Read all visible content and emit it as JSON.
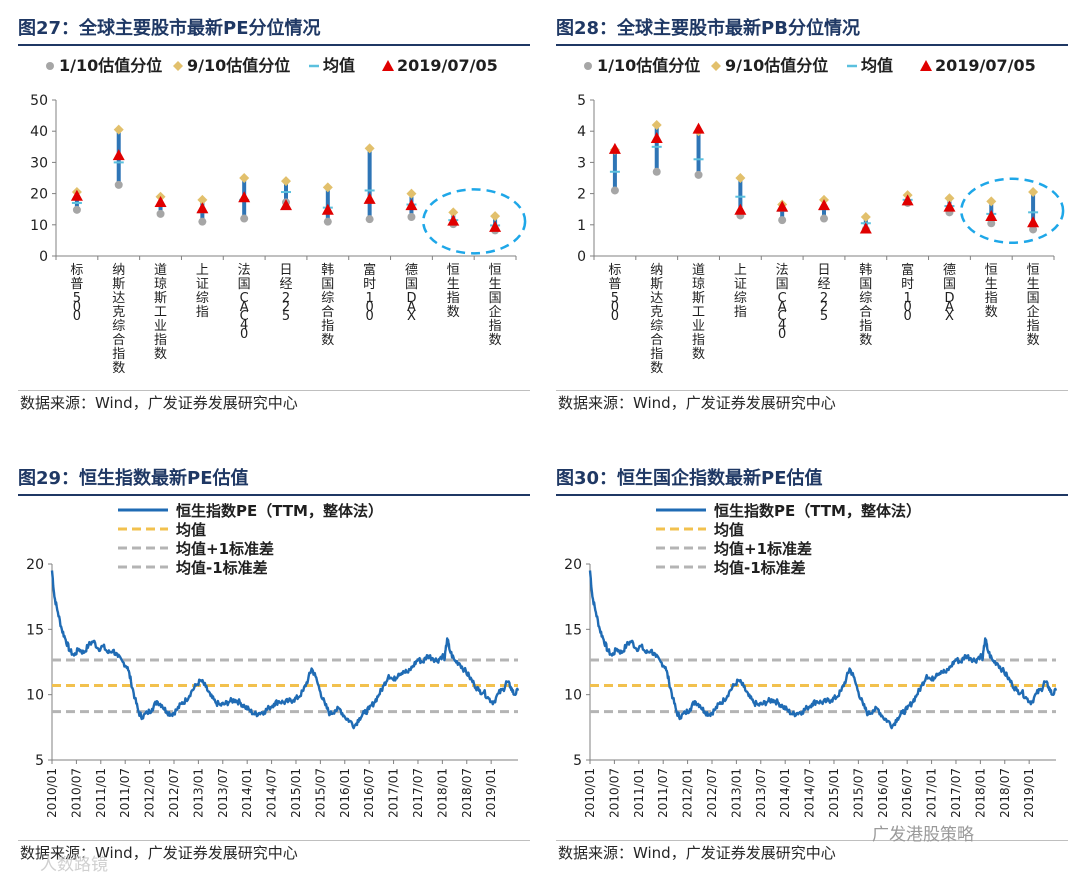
{
  "colors": {
    "title": "#1f3864",
    "range_line": "#2e75b6",
    "low_marker": "#a6a6a6",
    "high_marker": "#e2c06c",
    "mean_marker": "#5bc0de",
    "current_marker": "#e00000",
    "highlight_circle": "#1ea7e8",
    "pe_line": "#1f6bb4",
    "mean_line": "#f2c14e",
    "std_line": "#b4b4b4"
  },
  "panels": {
    "fig27": {
      "title": "图27：全球主要股市最新PE分位情况",
      "source": "数据来源：Wind，广发证券发展研究中心"
    },
    "fig28": {
      "title": "图28：全球主要股市最新PB分位情况",
      "source": "数据来源：Wind，广发证券发展研究中心"
    },
    "fig29": {
      "title": "图29：恒生指数最新PE估值",
      "source": "数据来源：Wind，广发证券发展研究中心"
    },
    "fig30": {
      "title": "图30：恒生国企指数最新PE估值",
      "source": "数据来源：Wind，广发证券发展研究中心"
    }
  },
  "watermarks": {
    "right": "广发港股策略",
    "left": "人数路镜"
  },
  "chart_data": [
    {
      "id": "fig27",
      "type": "scatter",
      "title": "全球主要股市最新PE分位情况",
      "legend": [
        "1/10估值分位",
        "9/10估值分位",
        "均值",
        "2019/07/05"
      ],
      "legend_position": "top",
      "categories": [
        "标普500",
        "纳斯达克综合指数",
        "道琼斯工业指数",
        "上证综指",
        "法国CAC40",
        "日经225",
        "韩国综合指数",
        "富时100",
        "德国DAX",
        "恒生指数",
        "恒生国企指数"
      ],
      "series": [
        {
          "name": "1/10估值分位",
          "values": [
            14.8,
            22.8,
            13.5,
            11.0,
            12.0,
            17.2,
            11.0,
            11.8,
            12.5,
            10.2,
            8.2
          ]
        },
        {
          "name": "9/10估值分位",
          "values": [
            20.5,
            40.5,
            19.0,
            18.0,
            25.0,
            24.0,
            22.0,
            34.5,
            20.0,
            14.0,
            12.8
          ]
        },
        {
          "name": "均值",
          "values": [
            17.0,
            30.0,
            16.0,
            14.0,
            18.0,
            20.5,
            15.5,
            21.0,
            16.5,
            11.5,
            9.8
          ]
        },
        {
          "name": "2019/07/05",
          "values": [
            19.0,
            32.0,
            17.0,
            15.0,
            18.5,
            16.0,
            14.5,
            18.0,
            16.0,
            11.0,
            9.0
          ]
        }
      ],
      "ylim": [
        0,
        50
      ],
      "yticks": [
        "50",
        "40",
        "30",
        "20",
        "10",
        "0"
      ],
      "highlight": [
        "恒生指数",
        "恒生国企指数"
      ]
    },
    {
      "id": "fig28",
      "type": "scatter",
      "title": "全球主要股市最新PB分位情况",
      "legend": [
        "1/10估值分位",
        "9/10估值分位",
        "均值",
        "2019/07/05"
      ],
      "legend_position": "top",
      "categories": [
        "标普500",
        "纳斯达克综合指数",
        "道琼斯工业指数",
        "上证综指",
        "法国CAC40",
        "日经225",
        "韩国综合指数",
        "富时100",
        "德国DAX",
        "恒生指数",
        "恒生国企指数"
      ],
      "series": [
        {
          "name": "1/10估值分位",
          "values": [
            2.1,
            2.7,
            2.6,
            1.3,
            1.15,
            1.2,
            0.85,
            1.7,
            1.4,
            1.05,
            0.85
          ]
        },
        {
          "name": "9/10估值分位",
          "values": [
            3.4,
            4.2,
            4.0,
            2.5,
            1.65,
            1.8,
            1.25,
            1.95,
            1.85,
            1.75,
            2.05
          ]
        },
        {
          "name": "均值",
          "values": [
            2.7,
            3.5,
            3.1,
            1.9,
            1.45,
            1.5,
            1.05,
            1.8,
            1.6,
            1.35,
            1.4
          ]
        },
        {
          "name": "2019/07/05",
          "values": [
            3.4,
            3.75,
            4.05,
            1.45,
            1.55,
            1.6,
            0.85,
            1.75,
            1.55,
            1.25,
            1.05
          ]
        }
      ],
      "ylim": [
        0,
        5
      ],
      "yticks": [
        "5",
        "4",
        "3",
        "2",
        "1",
        "0"
      ],
      "highlight": [
        "恒生指数",
        "恒生国企指数"
      ]
    },
    {
      "id": "fig29",
      "type": "line",
      "title": "恒生指数最新PE估值",
      "legend": [
        "恒生指数PE（TTM，整体法）",
        "均值",
        "均值+1标准差",
        "均值-1标准差"
      ],
      "legend_position": "top-left",
      "ylim": [
        5,
        20
      ],
      "yticks": [
        "20",
        "15",
        "10",
        "5"
      ],
      "xticks": [
        "2010/01",
        "2010/07",
        "2011/01",
        "2011/07",
        "2012/01",
        "2012/07",
        "2013/01",
        "2013/07",
        "2014/01",
        "2014/07",
        "2015/01",
        "2015/07",
        "2016/01",
        "2016/07",
        "2017/01",
        "2017/07",
        "2018/01",
        "2018/07",
        "2019/01"
      ],
      "x_start": 2010.0,
      "x_end": 2019.55,
      "mean": 10.7,
      "mean_plus_std": 12.65,
      "mean_minus_std": 8.7,
      "series": [
        {
          "name": "恒生指数PE（TTM，整体法）",
          "x": [
            2010.0,
            2010.05,
            2010.12,
            2010.2,
            2010.28,
            2010.36,
            2010.45,
            2010.55,
            2010.65,
            2010.75,
            2010.85,
            2010.95,
            2011.05,
            2011.15,
            2011.25,
            2011.35,
            2011.45,
            2011.55,
            2011.62,
            2011.7,
            2011.78,
            2011.85,
            2011.95,
            2012.05,
            2012.15,
            2012.25,
            2012.35,
            2012.45,
            2012.55,
            2012.65,
            2012.75,
            2012.85,
            2012.95,
            2013.05,
            2013.15,
            2013.25,
            2013.35,
            2013.45,
            2013.55,
            2013.65,
            2013.75,
            2013.85,
            2013.95,
            2014.05,
            2014.15,
            2014.25,
            2014.35,
            2014.45,
            2014.55,
            2014.65,
            2014.75,
            2014.85,
            2014.95,
            2015.05,
            2015.15,
            2015.25,
            2015.32,
            2015.4,
            2015.5,
            2015.6,
            2015.7,
            2015.8,
            2015.9,
            2016.0,
            2016.1,
            2016.2,
            2016.3,
            2016.4,
            2016.5,
            2016.6,
            2016.7,
            2016.8,
            2016.9,
            2017.0,
            2017.1,
            2017.2,
            2017.3,
            2017.4,
            2017.5,
            2017.6,
            2017.7,
            2017.8,
            2017.9,
            2018.0,
            2018.05,
            2018.1,
            2018.15,
            2018.25,
            2018.35,
            2018.45,
            2018.55,
            2018.65,
            2018.75,
            2018.85,
            2018.95,
            2019.05,
            2019.15,
            2019.25,
            2019.32,
            2019.4,
            2019.47,
            2019.55
          ],
          "y": [
            19.5,
            17.5,
            16.3,
            15.0,
            14.2,
            13.4,
            13.0,
            13.5,
            13.2,
            13.8,
            14.1,
            13.5,
            13.7,
            13.2,
            13.4,
            12.9,
            12.5,
            12.1,
            11.0,
            9.7,
            8.6,
            8.3,
            8.6,
            8.9,
            9.5,
            9.2,
            8.7,
            8.5,
            8.8,
            9.3,
            9.6,
            10.2,
            10.7,
            11.1,
            10.6,
            9.9,
            9.4,
            9.2,
            9.3,
            9.5,
            9.6,
            9.4,
            9.1,
            8.8,
            8.5,
            8.6,
            8.7,
            9.0,
            9.3,
            9.5,
            9.4,
            9.5,
            9.6,
            9.8,
            10.3,
            11.2,
            12.0,
            11.4,
            10.2,
            9.2,
            8.5,
            8.8,
            8.9,
            8.3,
            8.0,
            7.6,
            8.2,
            8.6,
            8.9,
            9.4,
            10.0,
            10.7,
            11.5,
            11.1,
            11.6,
            11.8,
            11.7,
            12.2,
            12.7,
            12.5,
            13.0,
            12.8,
            12.6,
            13.0,
            12.8,
            14.3,
            13.4,
            12.6,
            12.4,
            11.9,
            11.4,
            10.8,
            10.3,
            10.2,
            9.7,
            9.4,
            10.1,
            10.4,
            11.0,
            10.6,
            10.0,
            10.3
          ]
        }
      ]
    },
    {
      "id": "fig30",
      "type": "line",
      "title": "恒生国企指数最新PE估值",
      "legend": [
        "恒生指数PE（TTM，整体法）",
        "均值",
        "均值+1标准差",
        "均值-1标准差"
      ],
      "legend_position": "top-left",
      "ylim": [
        5,
        20
      ],
      "yticks": [
        "20",
        "15",
        "10",
        "5"
      ],
      "xticks": [
        "2010/01",
        "2010/07",
        "2011/01",
        "2011/07",
        "2012/01",
        "2012/07",
        "2013/01",
        "2013/07",
        "2014/01",
        "2014/07",
        "2015/01",
        "2015/07",
        "2016/01",
        "2016/07",
        "2017/01",
        "2017/07",
        "2018/01",
        "2018/07",
        "2019/01"
      ],
      "x_start": 2010.0,
      "x_end": 2019.55,
      "mean": 10.7,
      "mean_plus_std": 12.65,
      "mean_minus_std": 8.7,
      "series": [
        {
          "name": "恒生指数PE（TTM，整体法）",
          "x": [
            2010.0,
            2010.05,
            2010.12,
            2010.2,
            2010.28,
            2010.36,
            2010.45,
            2010.55,
            2010.65,
            2010.75,
            2010.85,
            2010.95,
            2011.05,
            2011.15,
            2011.25,
            2011.35,
            2011.45,
            2011.55,
            2011.62,
            2011.7,
            2011.78,
            2011.85,
            2011.95,
            2012.05,
            2012.15,
            2012.25,
            2012.35,
            2012.45,
            2012.55,
            2012.65,
            2012.75,
            2012.85,
            2012.95,
            2013.05,
            2013.15,
            2013.25,
            2013.35,
            2013.45,
            2013.55,
            2013.65,
            2013.75,
            2013.85,
            2013.95,
            2014.05,
            2014.15,
            2014.25,
            2014.35,
            2014.45,
            2014.55,
            2014.65,
            2014.75,
            2014.85,
            2014.95,
            2015.05,
            2015.15,
            2015.25,
            2015.32,
            2015.4,
            2015.5,
            2015.6,
            2015.7,
            2015.8,
            2015.9,
            2016.0,
            2016.1,
            2016.2,
            2016.3,
            2016.4,
            2016.5,
            2016.6,
            2016.7,
            2016.8,
            2016.9,
            2017.0,
            2017.1,
            2017.2,
            2017.3,
            2017.4,
            2017.5,
            2017.6,
            2017.7,
            2017.8,
            2017.9,
            2018.0,
            2018.05,
            2018.1,
            2018.15,
            2018.25,
            2018.35,
            2018.45,
            2018.55,
            2018.65,
            2018.75,
            2018.85,
            2018.95,
            2019.05,
            2019.15,
            2019.25,
            2019.32,
            2019.4,
            2019.47,
            2019.55
          ],
          "y": [
            19.5,
            17.5,
            16.3,
            15.0,
            14.2,
            13.4,
            13.0,
            13.5,
            13.2,
            13.8,
            14.1,
            13.5,
            13.7,
            13.2,
            13.4,
            12.9,
            12.5,
            12.1,
            11.0,
            9.7,
            8.6,
            8.3,
            8.6,
            8.9,
            9.5,
            9.2,
            8.7,
            8.5,
            8.8,
            9.3,
            9.6,
            10.2,
            10.7,
            11.1,
            10.6,
            9.9,
            9.4,
            9.2,
            9.3,
            9.5,
            9.6,
            9.4,
            9.1,
            8.8,
            8.5,
            8.6,
            8.7,
            9.0,
            9.3,
            9.5,
            9.4,
            9.5,
            9.6,
            9.8,
            10.3,
            11.2,
            12.0,
            11.4,
            10.2,
            9.2,
            8.5,
            8.8,
            8.9,
            8.3,
            8.0,
            7.6,
            8.2,
            8.6,
            8.9,
            9.4,
            10.0,
            10.7,
            11.5,
            11.1,
            11.6,
            11.8,
            11.7,
            12.2,
            12.7,
            12.5,
            13.0,
            12.8,
            12.6,
            13.0,
            12.8,
            14.3,
            13.4,
            12.6,
            12.4,
            11.9,
            11.4,
            10.8,
            10.3,
            10.2,
            9.7,
            9.4,
            10.1,
            10.4,
            11.0,
            10.6,
            10.0,
            10.3
          ]
        }
      ]
    }
  ]
}
